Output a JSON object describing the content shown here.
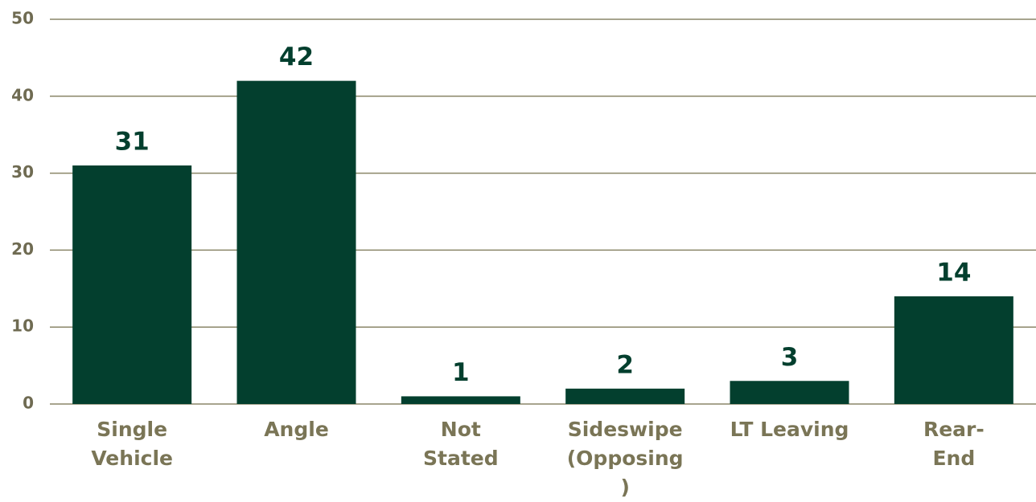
{
  "chart_data": {
    "type": "bar",
    "categories": [
      "Single Vehicle",
      "Angle",
      "Not Stated",
      "Sideswipe (Opposing)",
      "LT Leaving",
      "Rear-End"
    ],
    "values": [
      31,
      42,
      1,
      2,
      3,
      14
    ],
    "color": "#033f2e",
    "ylim": [
      0,
      50
    ],
    "yticks": [
      0,
      10,
      20,
      30,
      40,
      50
    ],
    "grid": true
  }
}
